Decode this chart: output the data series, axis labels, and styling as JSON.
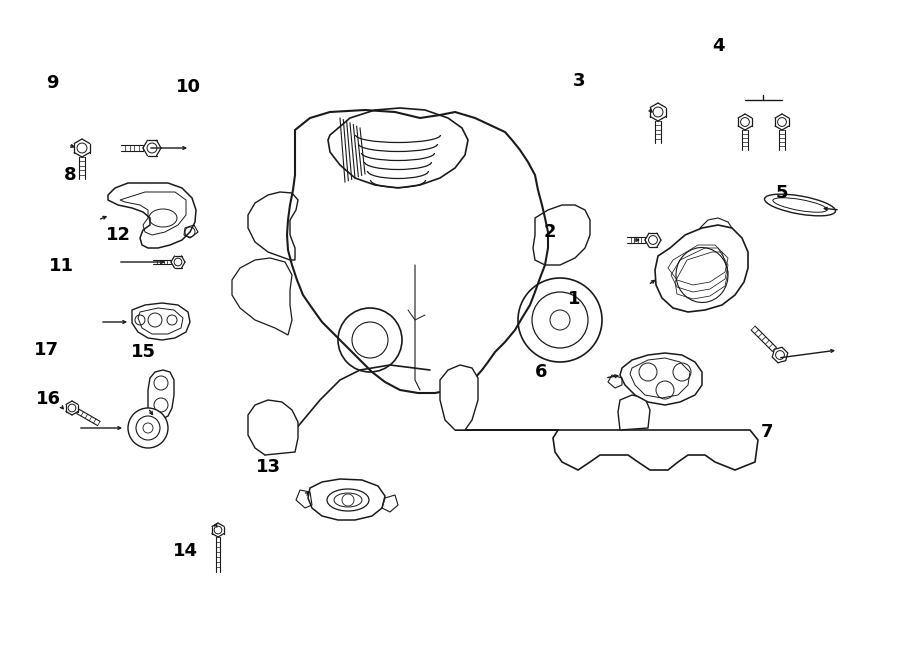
{
  "bg_color": "#ffffff",
  "line_color": "#1a1a1a",
  "lw": 1.0,
  "fig_width": 9.0,
  "fig_height": 6.62,
  "dpi": 100,
  "label_positions": {
    "1": [
      0.645,
      0.548,
      "right"
    ],
    "2": [
      0.618,
      0.65,
      "right"
    ],
    "3": [
      0.65,
      0.878,
      "right"
    ],
    "4": [
      0.798,
      0.93,
      "center"
    ],
    "5": [
      0.862,
      0.708,
      "left"
    ],
    "6": [
      0.608,
      0.438,
      "right"
    ],
    "7": [
      0.845,
      0.348,
      "left"
    ],
    "8": [
      0.085,
      0.735,
      "right"
    ],
    "9": [
      0.058,
      0.875,
      "center"
    ],
    "10": [
      0.195,
      0.868,
      "left"
    ],
    "11": [
      0.082,
      0.598,
      "right"
    ],
    "12": [
      0.118,
      0.645,
      "left"
    ],
    "13": [
      0.298,
      0.295,
      "center"
    ],
    "14": [
      0.192,
      0.168,
      "left"
    ],
    "15": [
      0.145,
      0.468,
      "left"
    ],
    "16": [
      0.068,
      0.398,
      "right"
    ],
    "17": [
      0.052,
      0.472,
      "center"
    ]
  }
}
